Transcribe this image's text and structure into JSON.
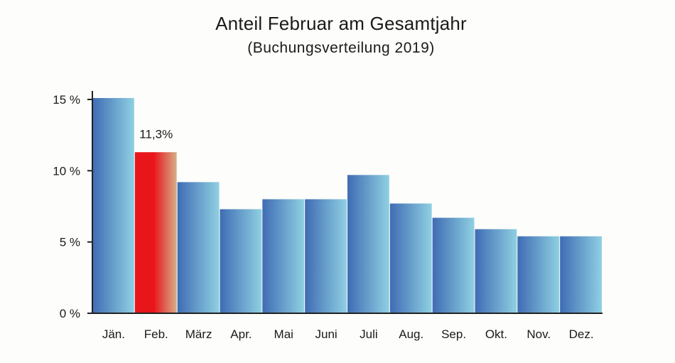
{
  "chart_data": {
    "type": "bar",
    "title": "Anteil Februar am Gesamtjahr",
    "subtitle": "(Buchungsverteilung 2019)",
    "categories": [
      "Jän.",
      "Feb.",
      "März",
      "Apr.",
      "Mai",
      "Juni",
      "Juli",
      "Aug.",
      "Sep.",
      "Okt.",
      "Nov.",
      "Dez."
    ],
    "values": [
      15.1,
      11.3,
      9.2,
      7.3,
      8.0,
      8.0,
      9.7,
      7.7,
      6.7,
      5.9,
      5.4,
      5.4
    ],
    "highlight_index": 1,
    "highlight_label": "11,3%",
    "ylim": [
      0,
      15
    ],
    "yticks": [
      {
        "value": 0,
        "label": "0 %"
      },
      {
        "value": 5,
        "label": "5 %"
      },
      {
        "value": 10,
        "label": "10 %"
      },
      {
        "value": 15,
        "label": "15 %"
      }
    ],
    "xlabel": "",
    "ylabel": "",
    "grid": false,
    "colors": {
      "bar_light": "#8fd0e2",
      "bar_dark": "#3f6cb4",
      "highlight_red": "#e8151b",
      "highlight_tan": "#d7ae88",
      "axis": "#222222"
    }
  }
}
